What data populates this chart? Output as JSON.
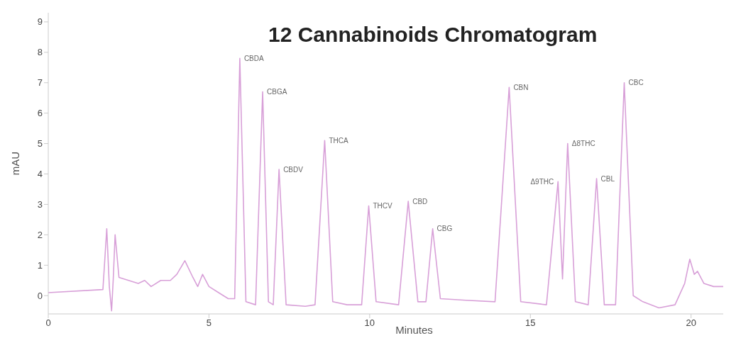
{
  "chart_data": {
    "type": "line",
    "title": "12 Cannabinoids Chromatogram",
    "xlabel": "Minutes",
    "ylabel": "mAU",
    "xlim": [
      0,
      21
    ],
    "xticks": [
      0,
      5,
      10,
      15,
      20
    ],
    "ylim": [
      -0.6,
      9.3
    ],
    "yticks": [
      0,
      1,
      2,
      3,
      4,
      5,
      6,
      7,
      8,
      9
    ],
    "grid": false,
    "legend": false,
    "marker": "none",
    "line_style": "solid",
    "series": [
      {
        "color": "#d8a0d8",
        "x": [
          0,
          1.7,
          1.82,
          1.9,
          1.97,
          2.02,
          2.08,
          2.2,
          2.5,
          2.8,
          3.0,
          3.2,
          3.5,
          3.8,
          4.0,
          4.25,
          4.5,
          4.65,
          4.8,
          5.0,
          5.3,
          5.6,
          5.8,
          5.96,
          6.15,
          6.45,
          6.67,
          6.85,
          7.0,
          7.18,
          7.4,
          8.0,
          8.3,
          8.6,
          8.85,
          9.3,
          9.75,
          9.97,
          10.2,
          10.9,
          11.2,
          11.5,
          11.75,
          11.96,
          12.2,
          13.0,
          13.9,
          14.34,
          14.7,
          15.5,
          15.86,
          16.0,
          16.16,
          16.4,
          16.8,
          17.06,
          17.3,
          17.65,
          17.92,
          18.2,
          18.5,
          19.0,
          19.5,
          19.8,
          19.96,
          20.1,
          20.2,
          20.4,
          20.7,
          21
        ],
        "values": [
          0.1,
          0.2,
          2.2,
          0.3,
          -0.5,
          0.5,
          2.0,
          0.6,
          0.5,
          0.4,
          0.5,
          0.3,
          0.5,
          0.5,
          0.7,
          1.15,
          0.6,
          0.3,
          0.7,
          0.3,
          0.1,
          -0.1,
          -0.1,
          7.8,
          -0.2,
          -0.3,
          6.7,
          -0.2,
          -0.3,
          4.15,
          -0.3,
          -0.35,
          -0.3,
          5.1,
          -0.2,
          -0.3,
          -0.3,
          2.95,
          -0.2,
          -0.3,
          3.1,
          -0.2,
          -0.2,
          2.2,
          -0.1,
          -0.15,
          -0.2,
          6.85,
          -0.2,
          -0.3,
          3.75,
          0.55,
          5.0,
          -0.2,
          -0.3,
          3.85,
          -0.3,
          -0.3,
          7.0,
          0.0,
          -0.2,
          -0.4,
          -0.3,
          0.4,
          1.2,
          0.7,
          0.8,
          0.4,
          0.3,
          0.3
        ]
      }
    ],
    "annotations": [
      {
        "text": "CBDA",
        "x": 5.96,
        "y": 7.8
      },
      {
        "text": "CBGA",
        "x": 6.67,
        "y": 6.7
      },
      {
        "text": "CBDV",
        "x": 7.18,
        "y": 4.15
      },
      {
        "text": "THCA",
        "x": 8.6,
        "y": 5.1
      },
      {
        "text": "THCV",
        "x": 9.97,
        "y": 2.95
      },
      {
        "text": "CBD",
        "x": 11.2,
        "y": 3.1
      },
      {
        "text": "CBG",
        "x": 11.96,
        "y": 2.2
      },
      {
        "text": "CBN",
        "x": 14.34,
        "y": 6.85
      },
      {
        "text": "Δ9THC",
        "x": 15.86,
        "y": 3.75
      },
      {
        "text": "Δ8THC",
        "x": 16.16,
        "y": 5.0
      },
      {
        "text": "CBL",
        "x": 17.06,
        "y": 3.85
      },
      {
        "text": "CBC",
        "x": 17.92,
        "y": 7.0
      }
    ]
  }
}
